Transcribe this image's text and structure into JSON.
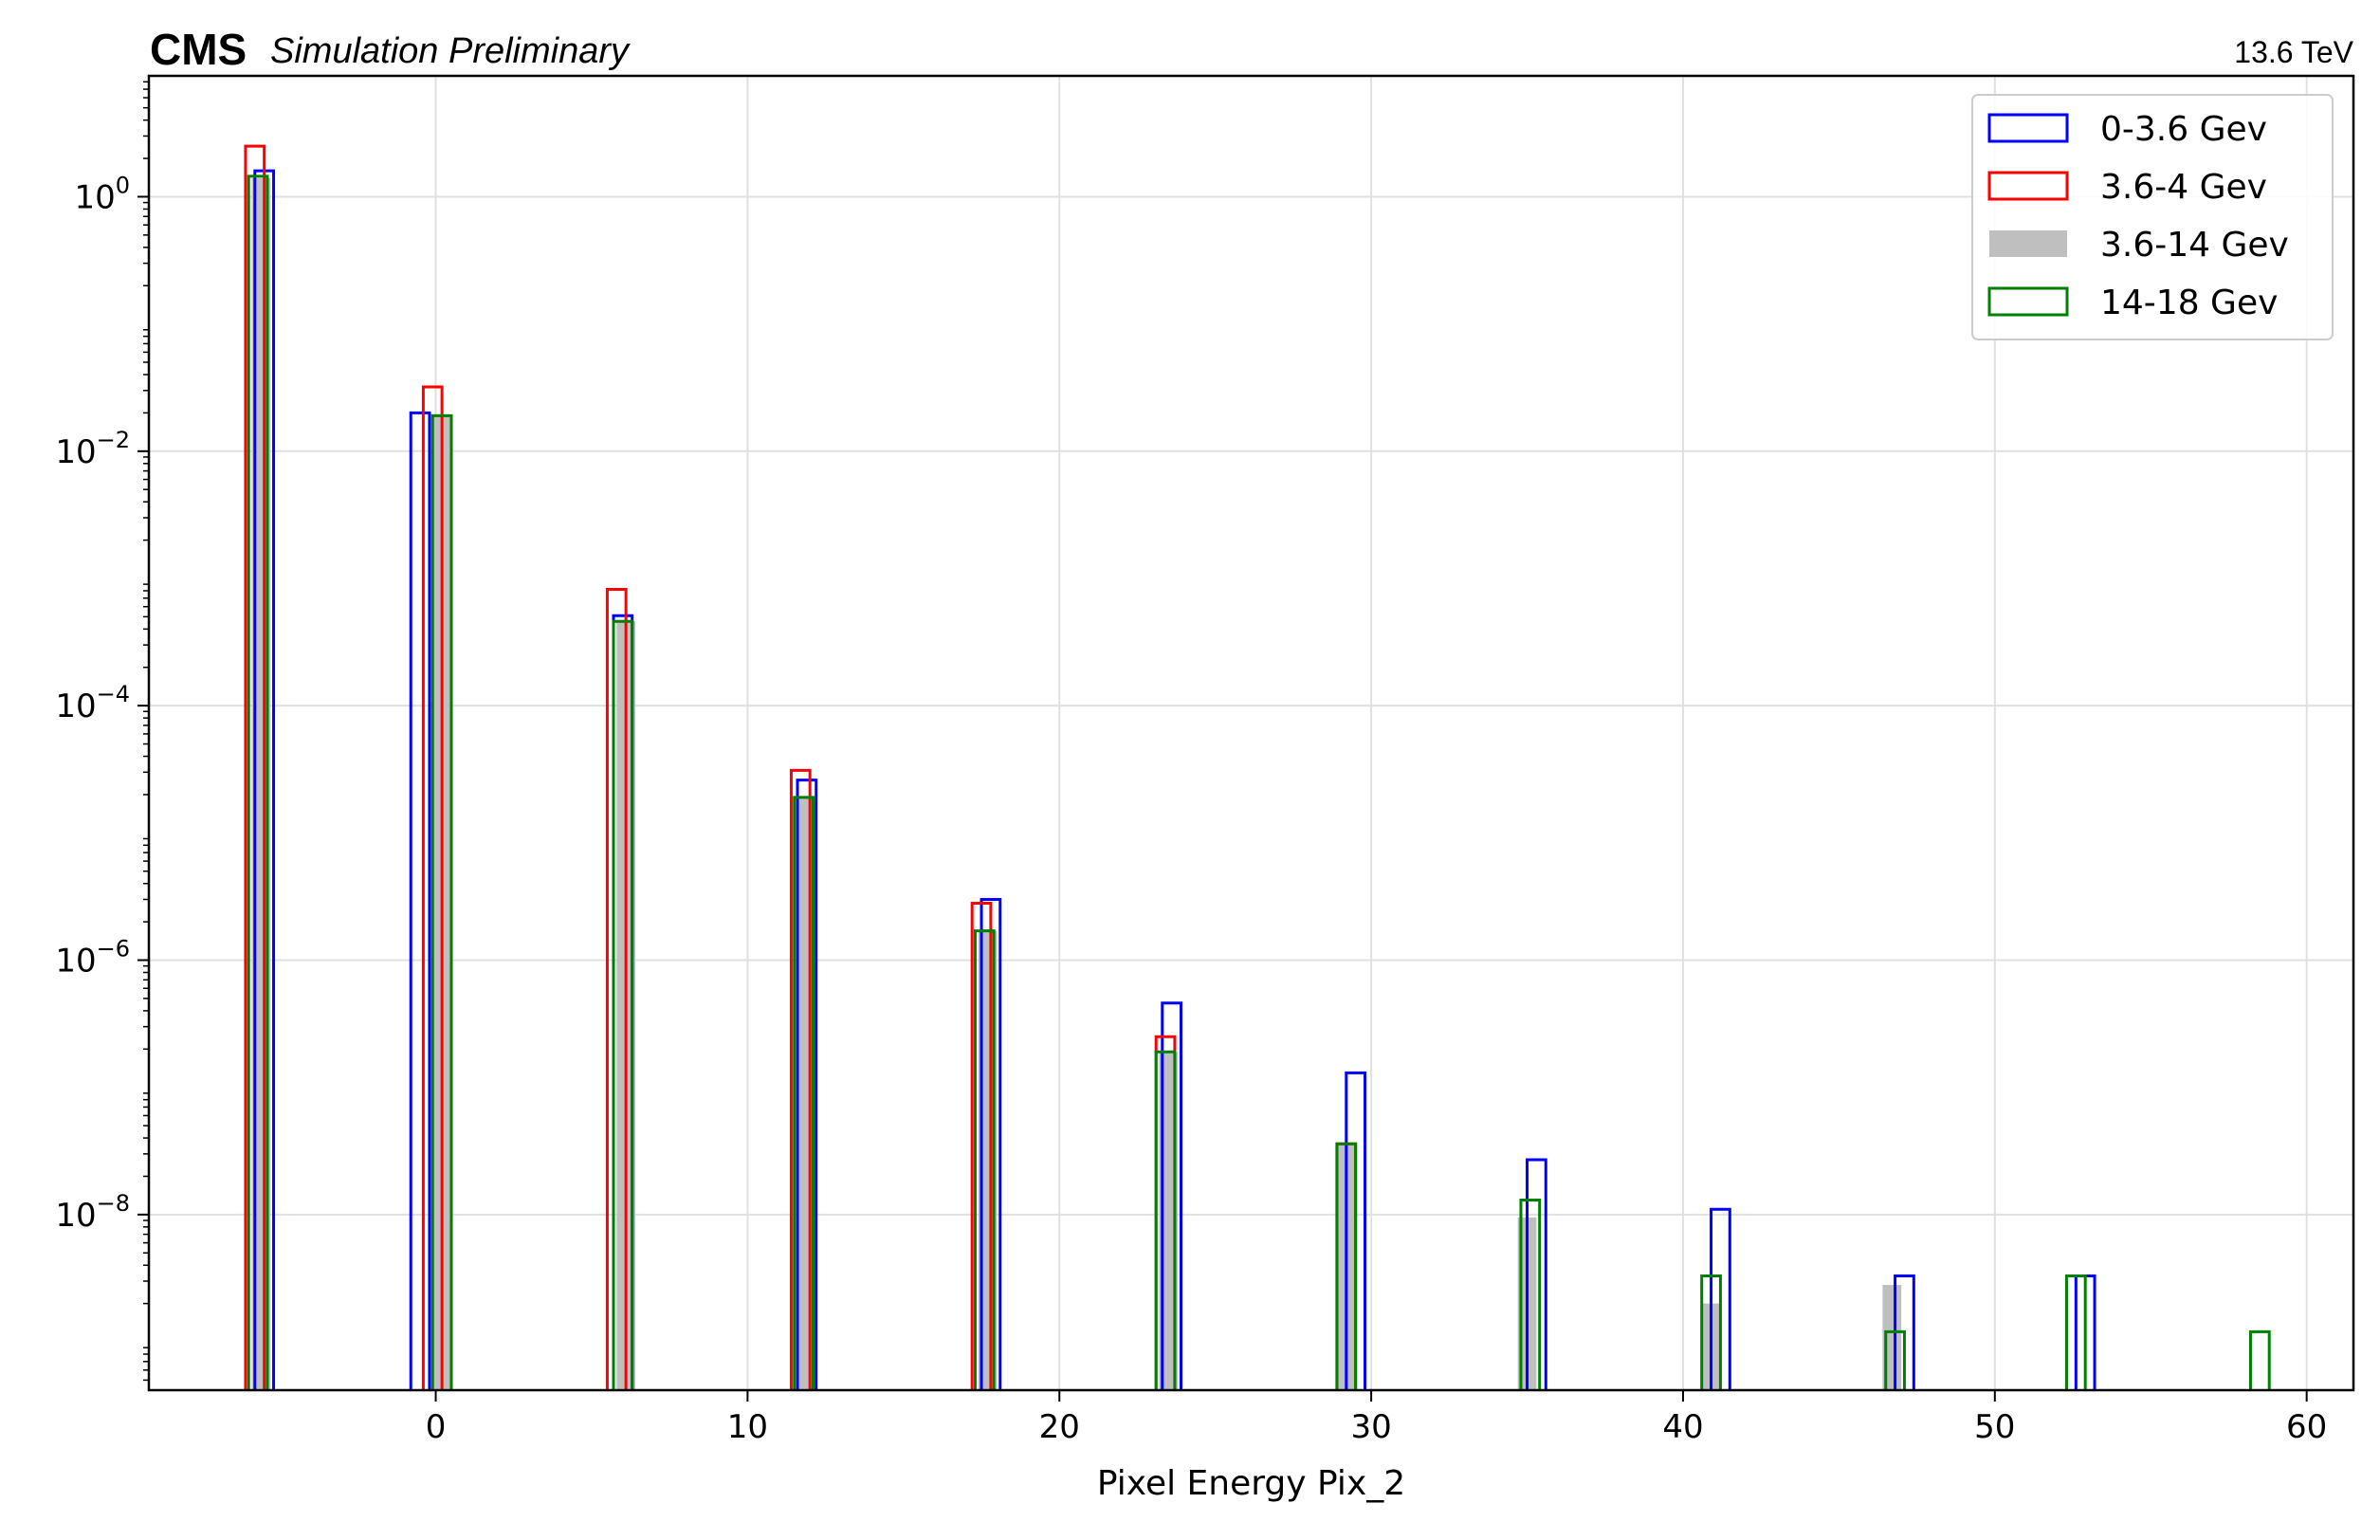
{
  "chart_data": {
    "type": "bar",
    "experiment_label": "CMS",
    "status_label": "Simulation Preliminary",
    "energy_label": "13.6 TeV",
    "xlabel": "Pixel Energy Pix_2",
    "ylabel": "",
    "xlim": [
      -9.2,
      61.5
    ],
    "ylim_log10": [
      -9.38,
      0.95
    ],
    "yscale": "log",
    "grid": true,
    "x_ticks": [
      0,
      10,
      20,
      30,
      40,
      50,
      60
    ],
    "y_tick_exponents": [
      0,
      -2,
      -4,
      -6,
      -8
    ],
    "y_tick_base": "10",
    "legend_position": "top-right",
    "bin_width": 0.6,
    "series": [
      {
        "name": "0-3.6 Gev",
        "style": "step",
        "color": "#0000ff",
        "bins": [
          {
            "x0": -5.8,
            "value": 1.6
          },
          {
            "x0": -0.8,
            "value": 0.02
          },
          {
            "x0": 5.7,
            "value": 0.00051
          },
          {
            "x0": 11.6,
            "value": 2.6e-05
          },
          {
            "x0": 17.5,
            "value": 3e-06
          },
          {
            "x0": 23.3,
            "value": 4.6e-07
          },
          {
            "x0": 29.2,
            "value": 1.3e-07
          },
          {
            "x0": 35.0,
            "value": 2.7e-08
          },
          {
            "x0": 40.9,
            "value": 1.1e-08
          },
          {
            "x0": 46.8,
            "value": 3.3e-09
          },
          {
            "x0": 52.6,
            "value": 3.3e-09
          }
        ]
      },
      {
        "name": "3.6-4 Gev",
        "style": "step",
        "color": "#ff0000",
        "bins": [
          {
            "x0": -6.1,
            "value": 2.5
          },
          {
            "x0": -0.4,
            "value": 0.032
          },
          {
            "x0": 5.5,
            "value": 0.00082
          },
          {
            "x0": 11.4,
            "value": 3.1e-05
          },
          {
            "x0": 17.2,
            "value": 2.8e-06
          },
          {
            "x0": 23.1,
            "value": 2.5e-07
          },
          {
            "x0": 28.9,
            "value": 3.6e-08
          }
        ]
      },
      {
        "name": "3.6-14 Gev",
        "style": "filled",
        "color": "#bfbfbf",
        "bins": [
          {
            "x0": -5.9,
            "value": 1.4
          },
          {
            "x0": -0.1,
            "value": 0.019
          },
          {
            "x0": 5.8,
            "value": 0.00046
          },
          {
            "x0": 11.6,
            "value": 1.9e-05
          },
          {
            "x0": 17.4,
            "value": 1.7e-06
          },
          {
            "x0": 23.2,
            "value": 1.9e-07
          },
          {
            "x0": 28.9,
            "value": 3.5e-08
          },
          {
            "x0": 34.7,
            "value": 9.5e-09
          },
          {
            "x0": 40.6,
            "value": 2e-09
          },
          {
            "x0": 46.4,
            "value": 2.8e-09
          }
        ]
      },
      {
        "name": "14-18 Gev",
        "style": "step",
        "color": "#008000",
        "bins": [
          {
            "x0": -6.0,
            "value": 1.45
          },
          {
            "x0": -0.1,
            "value": 0.019
          },
          {
            "x0": 5.7,
            "value": 0.00046
          },
          {
            "x0": 11.5,
            "value": 1.9e-05
          },
          {
            "x0": 17.3,
            "value": 1.7e-06
          },
          {
            "x0": 23.1,
            "value": 1.9e-07
          },
          {
            "x0": 28.9,
            "value": 3.6e-08
          },
          {
            "x0": 34.8,
            "value": 1.3e-08
          },
          {
            "x0": 40.6,
            "value": 3.3e-09
          },
          {
            "x0": 46.5,
            "value": 1.2e-09
          },
          {
            "x0": 52.3,
            "value": 3.3e-09
          },
          {
            "x0": 58.2,
            "value": 1.2e-09
          }
        ]
      }
    ]
  }
}
